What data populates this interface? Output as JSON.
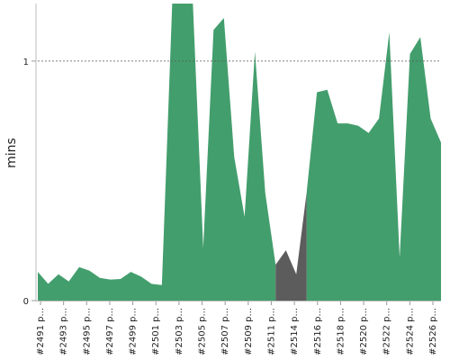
{
  "chart_data": {
    "type": "area",
    "ylabel": "mins",
    "ylim": [
      0,
      1.24
    ],
    "y_ticks": [
      {
        "value": 0,
        "label": "0"
      },
      {
        "value": 1,
        "label": "1"
      }
    ],
    "reference_line": 1,
    "grid": false,
    "x_tick_labels": [
      "#2491 p...",
      "#2493 p...",
      "#2495 p...",
      "#2497 p...",
      "#2499 p...",
      "#2501 p...",
      "#2503 p...",
      "#2505 p...",
      "#2507 p...",
      "#2509 p...",
      "#2511 p...",
      "#2514 p...",
      "#2516 p...",
      "#2518 p...",
      "#2520 p...",
      "#2522 p...",
      "#2524 p...",
      "#2526 p..."
    ],
    "series": [
      {
        "color": "#439e6d",
        "values": [
          0.12,
          0.07,
          0.11,
          0.08,
          0.14,
          0.125,
          0.095,
          0.088,
          0.09,
          0.12,
          0.1,
          0.07,
          0.065,
          1.25,
          1.25,
          1.25,
          0.22,
          1.13,
          1.18,
          0.6,
          0.35,
          1.04,
          0.45,
          0.15,
          null,
          null,
          0.45,
          0.87,
          0.88,
          0.74,
          0.74,
          0.73,
          0.7,
          0.76,
          1.12,
          0.18,
          1.03,
          1.1,
          0.76,
          0.66
        ]
      },
      {
        "color": "#5c5c5c",
        "values": [
          null,
          null,
          null,
          null,
          null,
          null,
          null,
          null,
          null,
          null,
          null,
          null,
          null,
          null,
          null,
          null,
          null,
          null,
          null,
          null,
          null,
          null,
          null,
          0.15,
          0.21,
          0.11,
          0.45,
          null,
          null,
          null,
          null,
          null,
          null,
          null,
          null,
          null,
          null,
          null,
          null,
          null
        ]
      }
    ]
  }
}
